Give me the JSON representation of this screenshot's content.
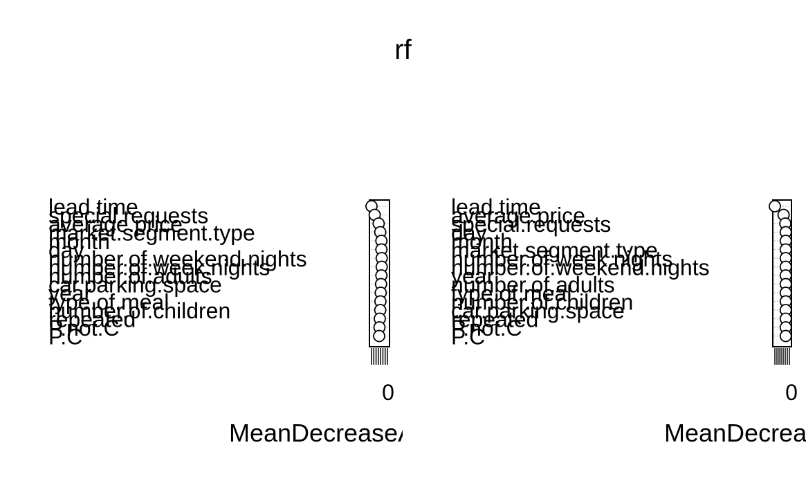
{
  "chart_data": {
    "type": "dotchart",
    "title": "rf",
    "panels": [
      {
        "xlabel": "MeanDecreaseAccuracy",
        "x_tick_labels": [
          "0"
        ],
        "variables": [
          "lead.time",
          "special.requests",
          "average.price",
          "market.segment.type",
          "month",
          "day",
          "number.of.weekend.nights",
          "number.of.week.nights",
          "number.of.adults",
          "car.parking.space",
          "year",
          "type.of.meal",
          "number.of.children",
          "repeated",
          "P.not.C",
          "P.C"
        ],
        "values": [
          0.0,
          0.2,
          0.45,
          0.55,
          0.62,
          0.62,
          0.64,
          0.64,
          0.62,
          0.6,
          0.58,
          0.56,
          0.55,
          0.52,
          0.5,
          0.48
        ]
      },
      {
        "xlabel": "MeanDecreaseGini",
        "x_tick_labels": [
          "0"
        ],
        "variables": [
          "lead.time",
          "average.price",
          "special.requests",
          "day",
          "month",
          "market.segment.type",
          "number.of.week.nights",
          "number.of.weekend.nights",
          "year",
          "number.of.adults",
          "type.of.meal",
          "number.of.children",
          "car.parking.space",
          "repeated",
          "P.not.C",
          "P.C"
        ],
        "values": [
          0.0,
          0.6,
          0.72,
          0.75,
          0.75,
          0.75,
          0.75,
          0.75,
          0.75,
          0.75,
          0.75,
          0.75,
          0.75,
          0.75,
          0.75,
          0.75
        ]
      }
    ]
  }
}
